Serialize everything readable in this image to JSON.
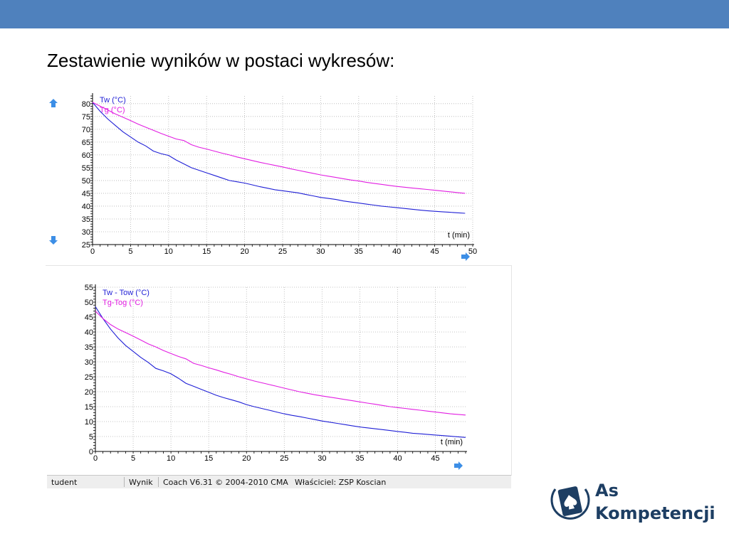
{
  "colors": {
    "top_bar": "#4f81bd",
    "series_1": "#1f1fd6",
    "series_2": "#e21ee2",
    "grid": "#b4b4b4",
    "arrow": "#3c8ee6",
    "logo": "#1d3e63"
  },
  "slide": {
    "title": "Zestawienie wyników w postaci wykresów:"
  },
  "chart_data": [
    {
      "type": "line",
      "x_axis_label": "t (min)",
      "xlim": [
        0,
        50
      ],
      "ylim": [
        25,
        83
      ],
      "x_ticks": [
        0,
        5,
        10,
        15,
        20,
        25,
        30,
        35,
        40,
        45,
        50
      ],
      "y_ticks": [
        25,
        30,
        35,
        40,
        45,
        50,
        55,
        60,
        65,
        70,
        75,
        80
      ],
      "grid": true,
      "legend_position": "top-left",
      "series": [
        {
          "name": "Tw (°C)",
          "x": [
            0,
            1,
            2,
            3,
            4,
            5,
            6,
            7,
            8,
            9,
            10,
            11,
            12,
            13,
            14,
            15,
            16,
            17,
            18,
            19,
            20,
            21,
            22,
            23,
            24,
            25,
            26,
            27,
            28,
            29,
            30,
            31,
            32,
            33,
            34,
            35,
            36,
            37,
            38,
            39,
            40,
            41,
            42,
            43,
            44,
            45,
            46,
            47,
            48,
            49
          ],
          "y": [
            80.5,
            77,
            74,
            71.5,
            69,
            67,
            65,
            63.5,
            61.5,
            60.5,
            59.8,
            58,
            56.5,
            55,
            54,
            53,
            52,
            51,
            50,
            49.5,
            49,
            48.3,
            47.6,
            47,
            46.4,
            46,
            45.6,
            45.2,
            44.6,
            44,
            43.4,
            43,
            42.6,
            42,
            41.6,
            41.2,
            40.8,
            40.4,
            40,
            39.7,
            39.4,
            39.1,
            38.8,
            38.5,
            38.2,
            38,
            37.8,
            37.6,
            37.4,
            37.2
          ]
        },
        {
          "name": "Tg (°C)",
          "x": [
            0,
            1,
            2,
            3,
            4,
            5,
            6,
            7,
            8,
            9,
            10,
            11,
            12,
            13,
            14,
            15,
            16,
            17,
            18,
            19,
            20,
            21,
            22,
            23,
            24,
            25,
            26,
            27,
            28,
            29,
            30,
            31,
            32,
            33,
            34,
            35,
            36,
            37,
            38,
            39,
            40,
            41,
            42,
            43,
            44,
            45,
            46,
            47,
            48,
            49
          ],
          "y": [
            80.5,
            79,
            77.5,
            76,
            74.7,
            73.4,
            72,
            70.8,
            69.6,
            68.4,
            67.3,
            66.2,
            65.6,
            64,
            63,
            62.3,
            61.5,
            60.7,
            60,
            59.2,
            58.5,
            57.8,
            57.1,
            56.5,
            55.9,
            55.3,
            54.6,
            54,
            53.4,
            52.8,
            52.2,
            51.7,
            51.2,
            50.7,
            50.2,
            49.8,
            49.3,
            48.9,
            48.5,
            48.1,
            47.7,
            47.4,
            47.1,
            46.8,
            46.5,
            46.2,
            45.9,
            45.6,
            45.3,
            45
          ]
        }
      ]
    },
    {
      "type": "line",
      "x_axis_label": "t (min)",
      "xlim": [
        0,
        49
      ],
      "ylim": [
        0,
        55
      ],
      "x_ticks": [
        0,
        5,
        10,
        15,
        20,
        25,
        30,
        35,
        40,
        45
      ],
      "y_ticks": [
        0,
        5,
        10,
        15,
        20,
        25,
        30,
        35,
        40,
        45,
        50,
        55
      ],
      "grid": true,
      "legend_position": "top-left",
      "series": [
        {
          "name": "Tw - Tow (°C)",
          "x": [
            0,
            1,
            2,
            3,
            4,
            5,
            6,
            7,
            8,
            9,
            10,
            11,
            12,
            13,
            14,
            15,
            16,
            17,
            18,
            19,
            20,
            21,
            22,
            23,
            24,
            25,
            26,
            27,
            28,
            29,
            30,
            31,
            32,
            33,
            34,
            35,
            36,
            37,
            38,
            39,
            40,
            41,
            42,
            43,
            44,
            45,
            46,
            47,
            48,
            49
          ],
          "y": [
            48.5,
            44.5,
            41,
            38,
            35.5,
            33.5,
            31.5,
            29.8,
            27.8,
            27,
            26,
            24.5,
            22.8,
            21.8,
            20.8,
            19.8,
            18.8,
            18,
            17.3,
            16.6,
            15.7,
            15,
            14.4,
            13.8,
            13.2,
            12.6,
            12.1,
            11.7,
            11.2,
            10.7,
            10.2,
            9.8,
            9.4,
            9,
            8.6,
            8.2,
            7.9,
            7.6,
            7.3,
            7,
            6.7,
            6.4,
            6.1,
            5.9,
            5.7,
            5.5,
            5.3,
            5.1,
            4.9,
            4.7
          ]
        },
        {
          "name": "Tg-Tog (°C)",
          "x": [
            0,
            1,
            2,
            3,
            4,
            5,
            6,
            7,
            8,
            9,
            10,
            11,
            12,
            13,
            14,
            15,
            16,
            17,
            18,
            19,
            20,
            21,
            22,
            23,
            24,
            25,
            26,
            27,
            28,
            29,
            30,
            31,
            32,
            33,
            34,
            35,
            36,
            37,
            38,
            39,
            40,
            41,
            42,
            43,
            44,
            45,
            46,
            47,
            48,
            49
          ],
          "y": [
            47,
            44.5,
            42.5,
            41,
            39.8,
            38.6,
            37.3,
            36,
            35,
            33.8,
            32.8,
            31.8,
            31,
            29.5,
            28.8,
            28,
            27.3,
            26.5,
            25.8,
            25,
            24.3,
            23.6,
            23,
            22.4,
            21.8,
            21.2,
            20.6,
            20,
            19.5,
            19,
            18.6,
            18.2,
            17.8,
            17.4,
            17,
            16.6,
            16.2,
            15.8,
            15.4,
            15,
            14.7,
            14.4,
            14.1,
            13.8,
            13.5,
            13.2,
            12.9,
            12.6,
            12.4,
            12.2
          ]
        }
      ]
    }
  ],
  "status_bar": {
    "student": "tudent",
    "result": "Wynik",
    "coach": "Coach V6.31 © 2004-2010 CMA",
    "owner": "Właściciel: ZSP Koscian"
  },
  "logo": {
    "line1": "As",
    "line2": "Kompetencji",
    "icon": "spade-card-icon"
  }
}
